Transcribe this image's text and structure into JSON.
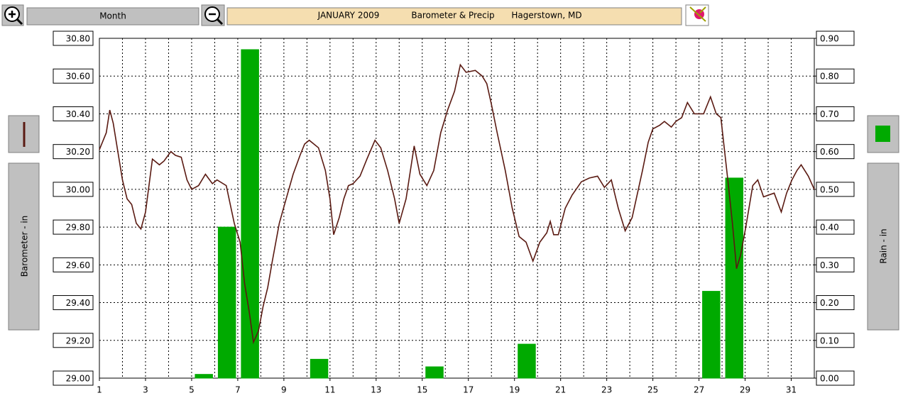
{
  "toolbar": {
    "range_button": "Month"
  },
  "chart_data": {
    "type": "combo",
    "title": [
      "JANUARY 2009",
      "Barometer & Precip",
      "Hagerstown, MD"
    ],
    "y_label": "Barometer - in",
    "y2_label": "Rain - in",
    "xlim": [
      1,
      32
    ],
    "xticks": [
      1,
      3,
      5,
      7,
      9,
      11,
      13,
      15,
      17,
      19,
      21,
      23,
      25,
      27,
      29,
      31
    ],
    "ylim": [
      29.0,
      30.8
    ],
    "yticks": [
      {
        "value": 29.0,
        "label": "29.00"
      },
      {
        "value": 29.2,
        "label": "29.20"
      },
      {
        "value": 29.4,
        "label": "29.40"
      },
      {
        "value": 29.6,
        "label": "29.60"
      },
      {
        "value": 29.8,
        "label": "29.80"
      },
      {
        "value": 30.0,
        "label": "30.00"
      },
      {
        "value": 30.2,
        "label": "30.20"
      },
      {
        "value": 30.4,
        "label": "30.40"
      },
      {
        "value": 30.6,
        "label": "30.60"
      },
      {
        "value": 30.8,
        "label": "30.80"
      }
    ],
    "y2lim": [
      0,
      0.9
    ],
    "y2ticks": [
      {
        "value": 0,
        "label": "0.00"
      },
      {
        "value": 0.1,
        "label": "0.10"
      },
      {
        "value": 0.2,
        "label": "0.20"
      },
      {
        "value": 0.3,
        "label": "0.30"
      },
      {
        "value": 0.4,
        "label": "0.40"
      },
      {
        "value": 0.5,
        "label": "0.50"
      },
      {
        "value": 0.6,
        "label": "0.60"
      },
      {
        "value": 0.7,
        "label": "0.70"
      },
      {
        "value": 0.8,
        "label": "0.80"
      },
      {
        "value": 0.9,
        "label": "0.90"
      }
    ],
    "grid": true,
    "series": [
      {
        "type": "line",
        "color": "#5a1a12",
        "x": [
          1.0,
          1.3,
          1.45,
          1.6,
          1.8,
          2.0,
          2.2,
          2.4,
          2.6,
          2.8,
          3.0,
          3.3,
          3.6,
          3.8,
          4.1,
          4.3,
          4.55,
          4.8,
          5.0,
          5.3,
          5.6,
          5.9,
          6.1,
          6.5,
          6.85,
          7.1,
          7.3,
          7.5,
          7.68,
          7.9,
          8.1,
          8.3,
          8.5,
          8.8,
          9.1,
          9.4,
          9.7,
          9.9,
          10.1,
          10.5,
          10.8,
          11.0,
          11.16,
          11.4,
          11.6,
          11.8,
          12.0,
          12.3,
          12.6,
          12.95,
          13.2,
          13.5,
          13.8,
          14.0,
          14.3,
          14.65,
          14.9,
          15.2,
          15.5,
          15.8,
          16.1,
          16.4,
          16.65,
          16.9,
          17.3,
          17.6,
          17.8,
          18.0,
          18.25,
          18.6,
          18.9,
          19.2,
          19.5,
          19.8,
          20.1,
          20.4,
          20.55,
          20.7,
          20.9,
          21.2,
          21.5,
          21.9,
          22.25,
          22.6,
          22.9,
          23.2,
          23.5,
          23.8,
          24.1,
          24.55,
          24.8,
          25.0,
          25.3,
          25.5,
          25.8,
          26.0,
          26.25,
          26.5,
          26.8,
          27.2,
          27.5,
          27.75,
          27.95,
          28.25,
          28.45,
          28.63,
          28.8,
          29.03,
          29.33,
          29.55,
          29.8,
          30.26,
          30.57,
          30.8,
          31.03,
          31.25,
          31.43,
          31.74,
          32.0
        ],
        "values": [
          30.21,
          30.3,
          30.42,
          30.35,
          30.2,
          30.05,
          29.95,
          29.92,
          29.82,
          29.79,
          29.88,
          30.16,
          30.13,
          30.15,
          30.2,
          30.18,
          30.17,
          30.05,
          30.0,
          30.02,
          30.08,
          30.03,
          30.05,
          30.02,
          29.82,
          29.72,
          29.5,
          29.35,
          29.19,
          29.25,
          29.38,
          29.48,
          29.62,
          29.82,
          29.95,
          30.08,
          30.18,
          30.24,
          30.26,
          30.22,
          30.1,
          29.95,
          29.76,
          29.85,
          29.95,
          30.02,
          30.03,
          30.07,
          30.16,
          30.26,
          30.22,
          30.1,
          29.95,
          29.82,
          29.95,
          30.23,
          30.08,
          30.02,
          30.1,
          30.3,
          30.42,
          30.52,
          30.66,
          30.62,
          30.63,
          30.6,
          30.56,
          30.45,
          30.3,
          30.1,
          29.9,
          29.75,
          29.72,
          29.62,
          29.72,
          29.77,
          29.83,
          29.76,
          29.76,
          29.9,
          29.97,
          30.04,
          30.06,
          30.07,
          30.01,
          30.05,
          29.9,
          29.78,
          29.85,
          30.1,
          30.25,
          30.32,
          30.34,
          30.36,
          30.33,
          30.36,
          30.38,
          30.46,
          30.4,
          30.4,
          30.49,
          30.4,
          30.38,
          30.05,
          29.82,
          29.58,
          29.65,
          29.8,
          30.02,
          30.05,
          29.96,
          29.98,
          29.88,
          29.98,
          30.05,
          30.1,
          30.13,
          30.07,
          30.0
        ]
      },
      {
        "type": "bar",
        "axis": "y2",
        "color": "#00aa00",
        "x": [
          1,
          2,
          3,
          4,
          5,
          6,
          7,
          8,
          9,
          10,
          11,
          12,
          13,
          14,
          15,
          16,
          17,
          18,
          19,
          20,
          21,
          22,
          23,
          24,
          25,
          26,
          27,
          28,
          29,
          30,
          31
        ],
        "values": [
          0,
          0,
          0,
          0,
          0.01,
          0.4,
          0.87,
          0,
          0,
          0.05,
          0,
          0,
          0,
          0,
          0.03,
          0,
          0,
          0,
          0.09,
          0,
          0,
          0,
          0,
          0,
          0,
          0,
          0.23,
          0.53,
          0,
          0,
          0
        ]
      }
    ]
  }
}
